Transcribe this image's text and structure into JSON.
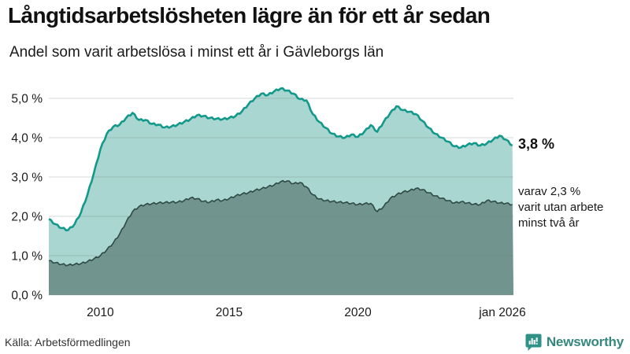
{
  "header": {
    "title": "Långtidsarbetslösheten lägre än för ett år sedan",
    "subtitle": "Andel som varit arbetslösa i minst ett år i Gävleborgs län"
  },
  "annotations": {
    "latest_total": "3,8 %",
    "latest_two_year": "varav 2,3 %\nvarit utan arbete\nminst två år"
  },
  "footer": {
    "source": "Källa: Arbetsförmedlingen",
    "brand": "Newsworthy"
  },
  "colors": {
    "line_total": "#13998b",
    "fill_total": "#a9d6d0",
    "line_two_year": "#2e4a44",
    "fill_two_year": "#71958e",
    "grid": "#6b7b78",
    "brand_teal": "#2e9287",
    "text": "#1a1a1a"
  },
  "chart_data": {
    "type": "area",
    "title": "Långtidsarbetslösheten lägre än för ett år sedan",
    "subtitle": "Andel som varit arbetslösa i minst ett år i Gävleborgs län",
    "ylabel": "",
    "xlabel": "",
    "ylim": [
      0,
      5.5
    ],
    "xlim": [
      2008,
      2026.04
    ],
    "grid": "horizontal",
    "legend": "direct labels at right edge",
    "x": [
      2008,
      2008.25,
      2008.5,
      2008.75,
      2009,
      2009.25,
      2009.5,
      2009.75,
      2010,
      2010.25,
      2010.5,
      2010.75,
      2011,
      2011.25,
      2011.5,
      2011.75,
      2012,
      2012.25,
      2012.5,
      2012.75,
      2013,
      2013.25,
      2013.5,
      2013.75,
      2014,
      2014.25,
      2014.5,
      2014.75,
      2015,
      2015.25,
      2015.5,
      2015.75,
      2016,
      2016.25,
      2016.5,
      2016.75,
      2017,
      2017.25,
      2017.5,
      2017.75,
      2018,
      2018.25,
      2018.5,
      2018.75,
      2019,
      2019.25,
      2019.5,
      2019.75,
      2020,
      2020.25,
      2020.5,
      2020.75,
      2021,
      2021.25,
      2021.5,
      2021.75,
      2022,
      2022.25,
      2022.5,
      2022.75,
      2023,
      2023.25,
      2023.5,
      2023.75,
      2024,
      2024.25,
      2024.5,
      2024.75,
      2025,
      2025.25,
      2025.5,
      2025.75,
      2026
    ],
    "series": [
      {
        "name": "Arbetslösa minst ett år",
        "latest_value": 3.8,
        "values": [
          1.93,
          1.8,
          1.7,
          1.65,
          1.8,
          2.1,
          2.55,
          3.1,
          3.7,
          4.1,
          4.28,
          4.33,
          4.5,
          4.63,
          4.45,
          4.45,
          4.35,
          4.33,
          4.26,
          4.28,
          4.33,
          4.4,
          4.47,
          4.57,
          4.55,
          4.5,
          4.48,
          4.47,
          4.5,
          4.55,
          4.67,
          4.85,
          5.0,
          5.12,
          5.08,
          5.18,
          5.25,
          5.2,
          5.12,
          4.98,
          4.95,
          4.6,
          4.4,
          4.25,
          4.1,
          4.03,
          4.0,
          4.08,
          4.02,
          4.15,
          4.32,
          4.15,
          4.4,
          4.62,
          4.8,
          4.7,
          4.66,
          4.6,
          4.43,
          4.25,
          4.1,
          4.0,
          3.9,
          3.78,
          3.75,
          3.82,
          3.86,
          3.8,
          3.85,
          3.95,
          4.05,
          3.95,
          3.8
        ]
      },
      {
        "name": "Varav utan arbete minst två år",
        "latest_value": 2.3,
        "values": [
          0.87,
          0.82,
          0.78,
          0.76,
          0.78,
          0.8,
          0.85,
          0.92,
          1.0,
          1.15,
          1.32,
          1.55,
          1.85,
          2.12,
          2.25,
          2.3,
          2.32,
          2.34,
          2.35,
          2.36,
          2.36,
          2.4,
          2.47,
          2.45,
          2.38,
          2.36,
          2.42,
          2.4,
          2.45,
          2.52,
          2.57,
          2.6,
          2.66,
          2.7,
          2.75,
          2.8,
          2.88,
          2.9,
          2.83,
          2.86,
          2.75,
          2.55,
          2.44,
          2.4,
          2.38,
          2.36,
          2.35,
          2.33,
          2.3,
          2.32,
          2.33,
          2.12,
          2.25,
          2.45,
          2.55,
          2.62,
          2.65,
          2.71,
          2.68,
          2.6,
          2.52,
          2.46,
          2.4,
          2.34,
          2.37,
          2.34,
          2.31,
          2.3,
          2.4,
          2.38,
          2.34,
          2.33,
          2.3
        ]
      }
    ],
    "yticks": {
      "values": [
        0,
        1,
        2,
        3,
        4,
        5
      ],
      "labels": [
        "0,0 %",
        "1,0 %",
        "2,0 %",
        "3,0 %",
        "4,0 %",
        "5,0 %"
      ]
    },
    "xticks": [
      {
        "value": 2010,
        "label": "2010"
      },
      {
        "value": 2015,
        "label": "2015"
      },
      {
        "value": 2020,
        "label": "2020"
      },
      {
        "value": 2026,
        "label": "jan 2026"
      }
    ]
  }
}
